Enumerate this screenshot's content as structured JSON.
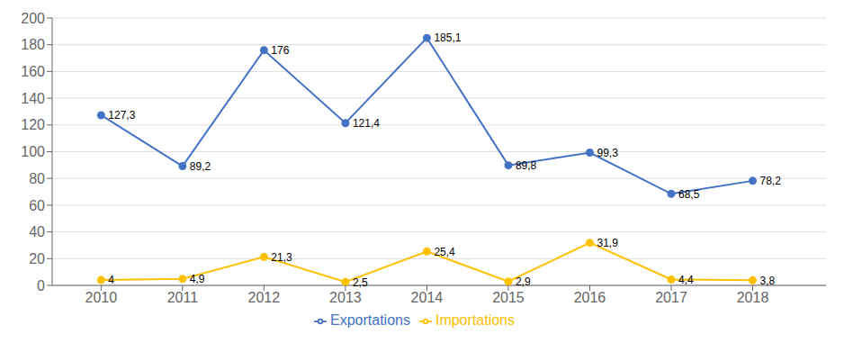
{
  "chart_data": {
    "type": "line",
    "x": [
      2010,
      2011,
      2012,
      2013,
      2014,
      2015,
      2016,
      2017,
      2018
    ],
    "xlim": [
      2009.4,
      2018.9
    ],
    "xticks": [
      2010,
      2011,
      2012,
      2013,
      2014,
      2015,
      2016,
      2017,
      2018
    ],
    "ylim": [
      0,
      200
    ],
    "yticks": [
      0,
      20,
      40,
      60,
      80,
      100,
      120,
      140,
      160,
      180,
      200
    ],
    "grid": true,
    "legend": "bottom",
    "data_labels": true,
    "series": [
      {
        "name": "Exportations",
        "color": "#4472C4",
        "marker": "circle",
        "values": [
          127.3,
          89.2,
          176.0,
          121.4,
          185.1,
          89.8,
          99.3,
          68.5,
          78.2
        ],
        "value_labels": [
          "127,3",
          "89,2",
          "176",
          "121,4",
          "185,1",
          "89,8",
          "99,3",
          "68,5",
          "78,2"
        ]
      },
      {
        "name": "Importations",
        "color": "#FFC000",
        "marker": "circle",
        "values": [
          4.0,
          4.9,
          21.3,
          2.5,
          25.4,
          2.9,
          31.9,
          4.4,
          3.8
        ],
        "value_labels": [
          "4",
          "4,9",
          "21,3",
          "2,5",
          "25,4",
          "2,9",
          "31,9",
          "4,4",
          "3,8"
        ]
      }
    ]
  }
}
